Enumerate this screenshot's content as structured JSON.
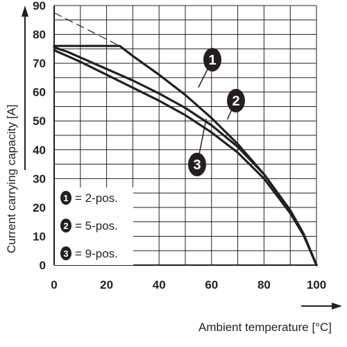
{
  "chart_data": {
    "type": "line",
    "xlabel": "Ambient temperature [°C]",
    "ylabel": "Current carrying capacity [A]",
    "xlim": [
      0,
      100
    ],
    "ylim": [
      0,
      90
    ],
    "x_ticks": [
      "0",
      "20",
      "40",
      "60",
      "80",
      "100"
    ],
    "y_ticks": [
      "0",
      "10",
      "20",
      "30",
      "40",
      "50",
      "60",
      "70",
      "80",
      "90"
    ],
    "grid": true,
    "legend_position": "bottom-left",
    "line_color": "#231f20",
    "series": [
      {
        "name": "2-pos.",
        "marker": "1",
        "x": [
          0,
          5,
          10,
          15,
          20,
          25,
          30,
          40,
          50,
          60,
          70,
          80,
          90,
          95,
          100
        ],
        "y": [
          76,
          76,
          76,
          76,
          76,
          76,
          72.5,
          66,
          59,
          51,
          42,
          31.5,
          19,
          11,
          0
        ]
      },
      {
        "name": "5-pos.",
        "marker": "2",
        "x": [
          0,
          5,
          10,
          20,
          30,
          40,
          50,
          60,
          70,
          80,
          90,
          95,
          100
        ],
        "y": [
          75.5,
          74,
          72,
          68,
          64,
          59.5,
          54.5,
          48.5,
          41,
          31.5,
          19,
          11,
          0
        ]
      },
      {
        "name": "9-pos.",
        "marker": "3",
        "x": [
          0,
          5,
          10,
          20,
          30,
          40,
          50,
          60,
          70,
          80,
          90,
          95,
          100
        ],
        "y": [
          74.5,
          72.5,
          70.5,
          66,
          61.5,
          57,
          52,
          46,
          39,
          30,
          18,
          10.5,
          0
        ]
      }
    ],
    "reference_line": {
      "x": [
        0,
        25
      ],
      "y": [
        87.5,
        76
      ]
    },
    "legend": [
      {
        "marker": "1",
        "label": "= 2-pos."
      },
      {
        "marker": "2",
        "label": "= 5-pos."
      },
      {
        "marker": "3",
        "label": "= 9-pos."
      }
    ]
  }
}
